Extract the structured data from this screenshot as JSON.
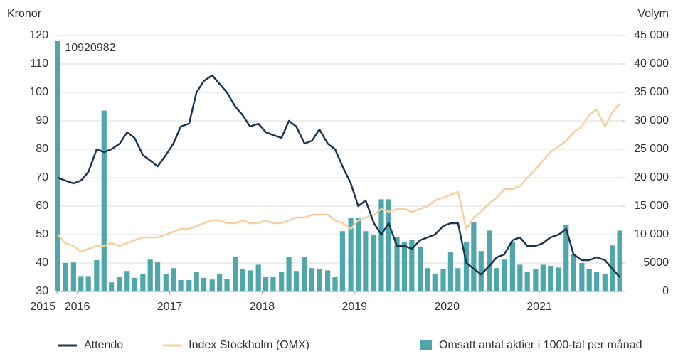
{
  "chart_data": {
    "type": "combo",
    "ylabel": "Kronor",
    "y2label": "Volym",
    "annotation": "10920982",
    "x": [
      2015.79,
      2015.87,
      2015.96,
      2016.04,
      2016.12,
      2016.21,
      2016.29,
      2016.37,
      2016.46,
      2016.54,
      2016.62,
      2016.71,
      2016.79,
      2016.87,
      2016.96,
      2017.04,
      2017.12,
      2017.21,
      2017.29,
      2017.37,
      2017.46,
      2017.54,
      2017.62,
      2017.71,
      2017.79,
      2017.87,
      2017.96,
      2018.04,
      2018.12,
      2018.21,
      2018.29,
      2018.37,
      2018.46,
      2018.54,
      2018.62,
      2018.71,
      2018.79,
      2018.87,
      2018.96,
      2019.04,
      2019.12,
      2019.21,
      2019.29,
      2019.37,
      2019.46,
      2019.54,
      2019.62,
      2019.71,
      2019.79,
      2019.87,
      2019.96,
      2020.04,
      2020.12,
      2020.21,
      2020.29,
      2020.37,
      2020.46,
      2020.54,
      2020.62,
      2020.71,
      2020.79,
      2020.87,
      2020.96,
      2021.04,
      2021.12,
      2021.21,
      2021.29,
      2021.37,
      2021.46,
      2021.54,
      2021.62,
      2021.71,
      2021.79,
      2021.87
    ],
    "series": [
      {
        "name": "Omsatt antal aktier i 1000-tal per månad",
        "type": "bar",
        "axis": "y2",
        "color": "#4fa7ab",
        "values": [
          46000,
          5000,
          5100,
          2700,
          2700,
          5500,
          31800,
          1600,
          2500,
          3600,
          2400,
          3000,
          5600,
          5200,
          3100,
          4100,
          2000,
          2000,
          3400,
          2400,
          2100,
          3100,
          2200,
          6000,
          4000,
          3700,
          4700,
          2500,
          2600,
          3500,
          6000,
          3600,
          6000,
          4100,
          3900,
          3700,
          2500,
          10600,
          12900,
          13000,
          10600,
          10000,
          16200,
          16200,
          9600,
          8700,
          9100,
          7900,
          4100,
          3100,
          4000,
          7000,
          4100,
          8700,
          12200,
          7100,
          10700,
          4100,
          5600,
          8700,
          4700,
          3500,
          3900,
          4700,
          4500,
          4200,
          11700,
          6600,
          5000,
          4000,
          3500,
          3100,
          8100,
          10700
        ]
      },
      {
        "name": "Index Stockholm (OMX)",
        "type": "line",
        "color": "#f5cf9f",
        "values": [
          50,
          47,
          46,
          44,
          45,
          46,
          46,
          47,
          46,
          47,
          48,
          49,
          49,
          49,
          50,
          51,
          52,
          52,
          53,
          54,
          55,
          55,
          54,
          54,
          55,
          54,
          54,
          55,
          54,
          54,
          55,
          56,
          56,
          57,
          57,
          57,
          55,
          54,
          52,
          55,
          56,
          57,
          59,
          58,
          59,
          59,
          58,
          59,
          60,
          62,
          63,
          64,
          65,
          52,
          56,
          58,
          61,
          63,
          66,
          66,
          67,
          70,
          73,
          76,
          79,
          81,
          83,
          86,
          88,
          92,
          94,
          88,
          93,
          96
        ]
      },
      {
        "name": "Attendo",
        "type": "line",
        "color": "#1b3552",
        "values": [
          70,
          69,
          68,
          69,
          72,
          80,
          79,
          80,
          82,
          86,
          84,
          78,
          76,
          74,
          78,
          82,
          88,
          89,
          100,
          104,
          106,
          103,
          100,
          95,
          92,
          88,
          89,
          86,
          85,
          84,
          90,
          88,
          82,
          83,
          87,
          82,
          80,
          74,
          68,
          60,
          62,
          54,
          50,
          54,
          46,
          46,
          45,
          48,
          49,
          50,
          53,
          54,
          54,
          40,
          38,
          36,
          39,
          42,
          43,
          48,
          49,
          46,
          46,
          47,
          49,
          50,
          52,
          43,
          41,
          41,
          42,
          41,
          38,
          35
        ]
      }
    ],
    "xlim": [
      2015.78,
      2021.9
    ],
    "xticks": [
      {
        "value": 2015.78,
        "label": "2015"
      },
      2016,
      2017,
      2018,
      2019,
      2020,
      2021
    ],
    "ylim": [
      30,
      120
    ],
    "yticks": [
      30,
      40,
      50,
      60,
      70,
      80,
      90,
      100,
      110,
      120
    ],
    "y2lim": [
      0,
      45000
    ],
    "y2ticks": [
      0,
      5000,
      {
        "value": 10000,
        "label": "10 000"
      },
      {
        "value": 15000,
        "label": "15 000"
      },
      {
        "value": 20000,
        "label": "20 000"
      },
      {
        "value": 25000,
        "label": "25 000"
      },
      {
        "value": 30000,
        "label": "30 000"
      },
      {
        "value": 35000,
        "label": "35 000"
      },
      {
        "value": 40000,
        "label": "40 000"
      },
      {
        "value": 45000,
        "label": "45 000"
      }
    ],
    "grid": true,
    "legend": "bottom"
  }
}
